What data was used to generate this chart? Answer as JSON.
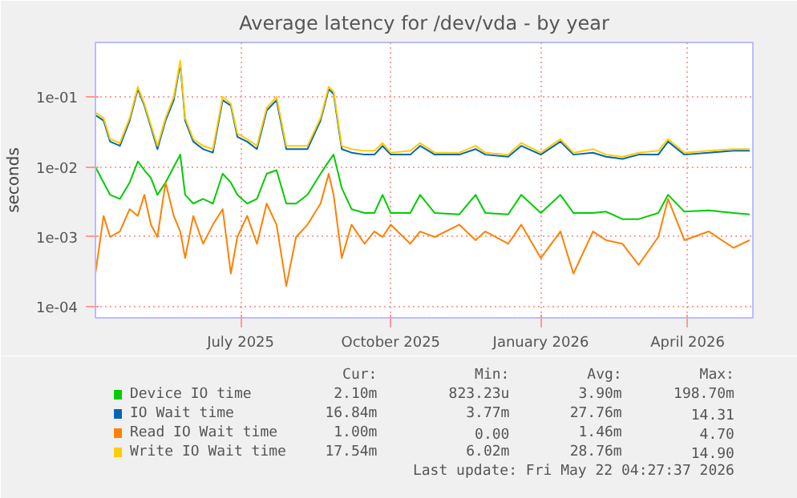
{
  "chart_data": {
    "type": "line",
    "title": "Average latency for /dev/vda - by year",
    "ylabel": "seconds",
    "x": [
      "2025-04-03",
      "2025-04-08",
      "2025-04-12",
      "2025-04-18",
      "2025-04-24",
      "2025-04-29",
      "2025-05-03",
      "2025-05-07",
      "2025-05-11",
      "2025-05-16",
      "2025-05-21",
      "2025-05-25",
      "2025-05-28",
      "2025-06-02",
      "2025-06-08",
      "2025-06-14",
      "2025-06-20",
      "2025-06-25",
      "2025-06-29",
      "2025-07-05",
      "2025-07-11",
      "2025-07-17",
      "2025-07-23",
      "2025-07-29",
      "2025-08-04",
      "2025-08-11",
      "2025-08-19",
      "2025-08-24",
      "2025-08-27",
      "2025-09-01",
      "2025-09-07",
      "2025-09-15",
      "2025-09-21",
      "2025-09-26",
      "2025-10-01",
      "2025-10-13",
      "2025-10-19",
      "2025-10-28",
      "2025-11-12",
      "2025-11-22",
      "2025-11-28",
      "2025-12-12",
      "2025-12-20",
      "2026-01-01",
      "2026-01-13",
      "2026-01-21",
      "2026-02-02",
      "2026-02-10",
      "2026-02-20",
      "2026-03-02",
      "2026-03-14",
      "2026-03-20",
      "2026-03-30",
      "2026-04-14",
      "2026-04-29",
      "2026-05-09"
    ],
    "series": [
      {
        "name": "Device IO time",
        "color": "#00cc00",
        "values": [
          0.01,
          0.006,
          0.004,
          0.0035,
          0.006,
          0.012,
          0.009,
          0.007,
          0.004,
          0.006,
          0.01,
          0.015,
          0.004,
          0.003,
          0.0035,
          0.003,
          0.008,
          0.006,
          0.004,
          0.003,
          0.0035,
          0.008,
          0.009,
          0.003,
          0.003,
          0.004,
          0.008,
          0.012,
          0.015,
          0.005,
          0.0025,
          0.0022,
          0.0022,
          0.004,
          0.0022,
          0.0022,
          0.004,
          0.0022,
          0.0021,
          0.004,
          0.0022,
          0.0021,
          0.004,
          0.0022,
          0.004,
          0.0022,
          0.0022,
          0.0023,
          0.0018,
          0.0018,
          0.0022,
          0.004,
          0.0023,
          0.0024,
          0.0022,
          0.0021
        ]
      },
      {
        "name": "IO Wait time",
        "color": "#0066b3",
        "values": [
          0.055,
          0.046,
          0.023,
          0.02,
          0.046,
          0.13,
          0.075,
          0.037,
          0.018,
          0.046,
          0.09,
          0.3,
          0.046,
          0.023,
          0.018,
          0.016,
          0.09,
          0.075,
          0.027,
          0.023,
          0.018,
          0.064,
          0.09,
          0.018,
          0.018,
          0.018,
          0.046,
          0.13,
          0.11,
          0.018,
          0.016,
          0.015,
          0.015,
          0.02,
          0.015,
          0.015,
          0.02,
          0.015,
          0.015,
          0.018,
          0.015,
          0.014,
          0.02,
          0.015,
          0.023,
          0.015,
          0.016,
          0.014,
          0.013,
          0.015,
          0.015,
          0.023,
          0.015,
          0.016,
          0.017,
          0.017
        ]
      },
      {
        "name": "Read IO Wait time",
        "color": "#ff8000",
        "values": [
          0.0003,
          0.002,
          0.001,
          0.0012,
          0.0025,
          0.002,
          0.004,
          0.0015,
          0.001,
          0.006,
          0.002,
          0.0012,
          0.0005,
          0.002,
          0.0008,
          0.0015,
          0.0025,
          0.0003,
          0.001,
          0.002,
          0.0008,
          0.003,
          0.0015,
          0.0002,
          0.001,
          0.0015,
          0.003,
          0.008,
          0.004,
          0.0005,
          0.0015,
          0.0008,
          0.0012,
          0.001,
          0.0015,
          0.0008,
          0.0012,
          0.001,
          0.0015,
          0.0009,
          0.0012,
          0.0008,
          0.0015,
          0.0005,
          0.0012,
          0.0003,
          0.0012,
          0.0009,
          0.0008,
          0.0004,
          0.001,
          0.0035,
          0.0009,
          0.0012,
          0.0007,
          0.0009
        ]
      },
      {
        "name": "Write IO Wait time",
        "color": "#ffcc00",
        "values": [
          0.06,
          0.05,
          0.025,
          0.022,
          0.05,
          0.14,
          0.08,
          0.04,
          0.02,
          0.05,
          0.1,
          0.33,
          0.05,
          0.025,
          0.02,
          0.018,
          0.1,
          0.08,
          0.03,
          0.025,
          0.02,
          0.07,
          0.1,
          0.02,
          0.02,
          0.02,
          0.05,
          0.14,
          0.12,
          0.02,
          0.018,
          0.017,
          0.017,
          0.022,
          0.016,
          0.017,
          0.022,
          0.016,
          0.016,
          0.02,
          0.016,
          0.015,
          0.022,
          0.016,
          0.025,
          0.016,
          0.018,
          0.015,
          0.014,
          0.016,
          0.017,
          0.025,
          0.016,
          0.017,
          0.018,
          0.018
        ]
      }
    ],
    "xlim": [
      "2025-04-03",
      "2026-05-11"
    ],
    "xticks": [
      {
        "value": "2025-07-01",
        "label": "July 2025"
      },
      {
        "value": "2025-10-01",
        "label": "October 2025"
      },
      {
        "value": "2026-01-01",
        "label": "January 2026"
      },
      {
        "value": "2026-04-01",
        "label": "April 2026"
      }
    ],
    "ylim": [
      7e-05,
      0.6
    ],
    "yticks": [
      {
        "value": 0.0001,
        "label": "1e-04"
      },
      {
        "value": 0.001,
        "label": "1e-03"
      },
      {
        "value": 0.01,
        "label": "1e-02"
      },
      {
        "value": 0.1,
        "label": "1e-01"
      }
    ],
    "log": "y",
    "grid": true,
    "legend": "bottom",
    "line_style": "solid",
    "annotations": [
      "Cur:",
      "Min:",
      "Avg:",
      "Max:",
      "2.10m",
      "823.23u",
      "3.90m",
      "198.70m",
      "16.84m",
      "3.77m",
      "27.76m",
      "14.31",
      "1.00m",
      "0.00",
      "1.46m",
      "4.70",
      "17.54m",
      "6.02m",
      "28.76m",
      "14.90",
      "Last update: Fri May 22 04:27:37 2026"
    ]
  }
}
